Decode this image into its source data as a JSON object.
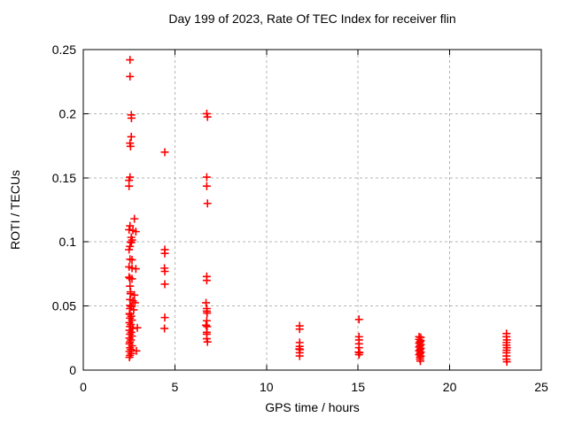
{
  "window": {
    "background": "#ffffff"
  },
  "chart_data": {
    "type": "scatter",
    "title": "Day 199 of 2023, Rate Of TEC Index for receiver flin",
    "xlabel": "GPS time / hours",
    "ylabel": "ROTI / TECUs",
    "xlim": [
      0,
      25
    ],
    "ylim": [
      0,
      0.25
    ],
    "xticks": [
      0,
      5,
      10,
      15,
      20,
      25
    ],
    "yticks": [
      0,
      0.05,
      0.1,
      0.15,
      0.2,
      0.25
    ],
    "grid": "dashed",
    "grid_color": "#b5b5b5",
    "axis_color": "#000000",
    "legend": "none",
    "marker": "plus",
    "marker_color": "#ff0000",
    "points": [
      [
        2.55,
        0.242
      ],
      [
        2.55,
        0.229
      ],
      [
        2.62,
        0.199
      ],
      [
        2.63,
        0.1965
      ],
      [
        2.62,
        0.182
      ],
      [
        2.55,
        0.177
      ],
      [
        2.58,
        0.1745
      ],
      [
        2.55,
        0.1505
      ],
      [
        2.5,
        0.148
      ],
      [
        2.5,
        0.1435
      ],
      [
        4.45,
        0.17
      ],
      [
        6.74,
        0.2
      ],
      [
        6.78,
        0.1975
      ],
      [
        6.74,
        0.1505
      ],
      [
        6.74,
        0.1435
      ],
      [
        6.78,
        0.13
      ],
      [
        2.79,
        0.118
      ],
      [
        2.55,
        0.1125
      ],
      [
        2.5,
        0.1095
      ],
      [
        2.71,
        0.109
      ],
      [
        2.87,
        0.108
      ],
      [
        2.62,
        0.1035
      ],
      [
        2.67,
        0.1015
      ],
      [
        2.6,
        0.1
      ],
      [
        2.62,
        0.0995
      ],
      [
        2.55,
        0.0965
      ],
      [
        2.5,
        0.094
      ],
      [
        2.55,
        0.0865
      ],
      [
        2.66,
        0.086
      ],
      [
        2.5,
        0.0805
      ],
      [
        2.66,
        0.0795
      ],
      [
        2.87,
        0.079
      ],
      [
        2.5,
        0.0725
      ],
      [
        2.55,
        0.0715
      ],
      [
        2.66,
        0.0712
      ],
      [
        2.55,
        0.0655
      ],
      [
        2.58,
        0.061
      ],
      [
        2.58,
        0.0595
      ],
      [
        2.79,
        0.0585
      ],
      [
        2.55,
        0.055
      ],
      [
        2.71,
        0.054
      ],
      [
        2.82,
        0.0525
      ],
      [
        2.55,
        0.0505
      ],
      [
        2.62,
        0.0495
      ],
      [
        2.55,
        0.048
      ],
      [
        2.75,
        0.047
      ],
      [
        2.52,
        0.044
      ],
      [
        2.55,
        0.0435
      ],
      [
        2.62,
        0.042
      ],
      [
        2.55,
        0.0405
      ],
      [
        2.66,
        0.039
      ],
      [
        2.52,
        0.037
      ],
      [
        2.6,
        0.0355
      ],
      [
        2.55,
        0.034
      ],
      [
        2.7,
        0.0325
      ],
      [
        2.95,
        0.033
      ],
      [
        2.52,
        0.031
      ],
      [
        2.62,
        0.0295
      ],
      [
        2.55,
        0.028
      ],
      [
        2.66,
        0.0265
      ],
      [
        2.52,
        0.025
      ],
      [
        2.6,
        0.0235
      ],
      [
        2.55,
        0.022
      ],
      [
        2.52,
        0.0205
      ],
      [
        2.66,
        0.019
      ],
      [
        2.55,
        0.0175
      ],
      [
        2.6,
        0.016
      ],
      [
        2.9,
        0.015
      ],
      [
        2.52,
        0.0145
      ],
      [
        2.62,
        0.013
      ],
      [
        2.55,
        0.0115
      ],
      [
        2.52,
        0.01
      ],
      [
        4.45,
        0.094
      ],
      [
        4.45,
        0.091
      ],
      [
        4.43,
        0.0795
      ],
      [
        4.45,
        0.077
      ],
      [
        4.45,
        0.067
      ],
      [
        4.45,
        0.041
      ],
      [
        4.43,
        0.0325
      ],
      [
        6.74,
        0.073
      ],
      [
        6.74,
        0.07
      ],
      [
        6.7,
        0.0525
      ],
      [
        6.74,
        0.048
      ],
      [
        6.74,
        0.046
      ],
      [
        6.76,
        0.0445
      ],
      [
        6.74,
        0.0385
      ],
      [
        6.7,
        0.035
      ],
      [
        6.76,
        0.034
      ],
      [
        6.74,
        0.0295
      ],
      [
        6.74,
        0.028
      ],
      [
        6.74,
        0.0245
      ],
      [
        6.78,
        0.022
      ],
      [
        11.81,
        0.0345
      ],
      [
        11.81,
        0.032
      ],
      [
        11.81,
        0.0215
      ],
      [
        11.81,
        0.0185
      ],
      [
        11.79,
        0.0165
      ],
      [
        11.83,
        0.016
      ],
      [
        11.81,
        0.0135
      ],
      [
        11.81,
        0.011
      ],
      [
        15.05,
        0.0395
      ],
      [
        15.05,
        0.026
      ],
      [
        15.05,
        0.0235
      ],
      [
        15.05,
        0.0205
      ],
      [
        15.05,
        0.0175
      ],
      [
        15.03,
        0.014
      ],
      [
        15.08,
        0.0135
      ],
      [
        15.05,
        0.012
      ],
      [
        18.33,
        0.026
      ],
      [
        18.42,
        0.0255
      ],
      [
        18.33,
        0.024
      ],
      [
        18.42,
        0.023
      ],
      [
        18.38,
        0.022
      ],
      [
        18.33,
        0.021
      ],
      [
        18.42,
        0.02
      ],
      [
        18.38,
        0.019
      ],
      [
        18.33,
        0.018
      ],
      [
        18.42,
        0.017
      ],
      [
        18.38,
        0.016
      ],
      [
        18.33,
        0.015
      ],
      [
        18.42,
        0.014
      ],
      [
        18.38,
        0.013
      ],
      [
        18.33,
        0.012
      ],
      [
        18.42,
        0.011
      ],
      [
        18.38,
        0.01
      ],
      [
        18.38,
        0.0085
      ],
      [
        18.4,
        0.007
      ],
      [
        23.1,
        0.0285
      ],
      [
        23.1,
        0.026
      ],
      [
        23.12,
        0.0235
      ],
      [
        23.1,
        0.0215
      ],
      [
        23.1,
        0.0195
      ],
      [
        23.12,
        0.0175
      ],
      [
        23.1,
        0.0155
      ],
      [
        23.1,
        0.0135
      ],
      [
        23.1,
        0.011
      ],
      [
        23.1,
        0.0085
      ],
      [
        23.12,
        0.0065
      ]
    ]
  }
}
